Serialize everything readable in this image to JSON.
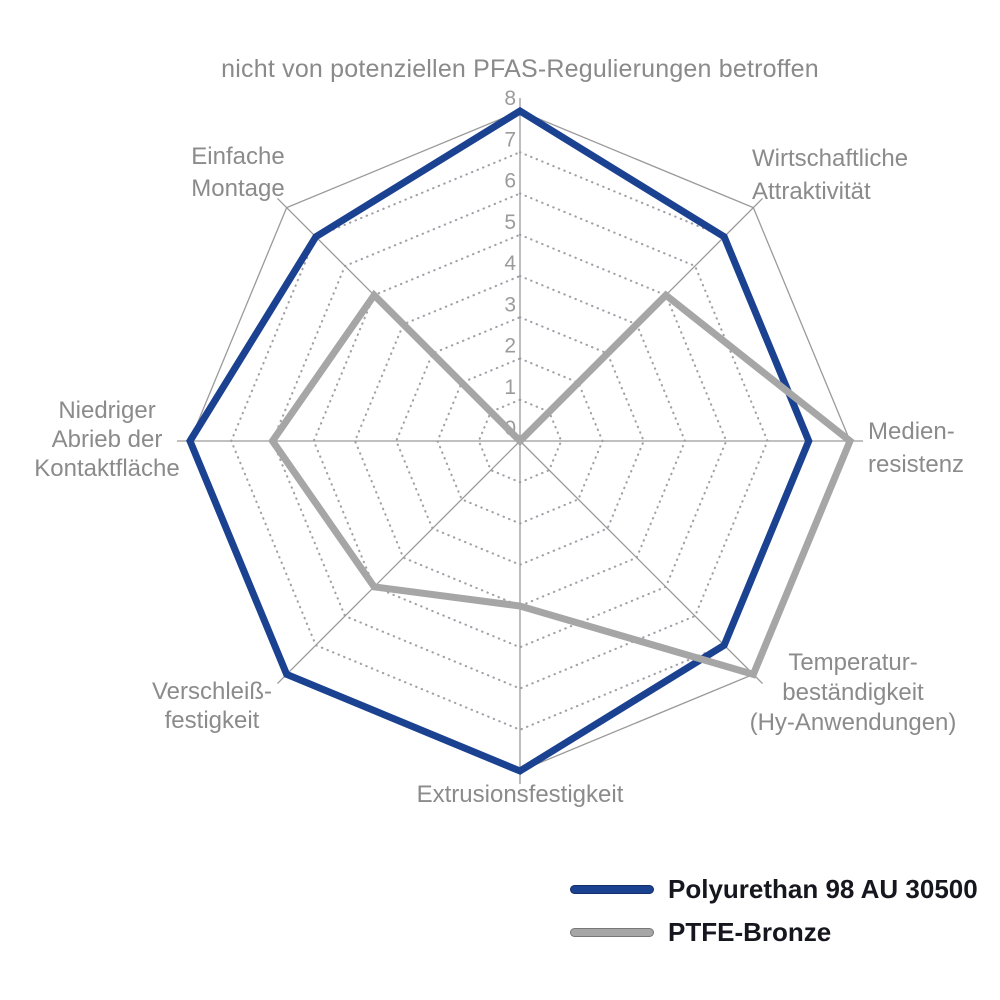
{
  "chart_data": {
    "type": "radar",
    "title": "nicht von potenziellen PFAS-Regulierungen betroffen",
    "scale": {
      "min": 0,
      "max": 8,
      "ticks": [
        "0",
        "1",
        "2",
        "3",
        "4",
        "5",
        "6",
        "7",
        "8"
      ]
    },
    "grid": {
      "rings": "dotted octagons at each integer",
      "outer_ring": "solid",
      "spokes": 8
    },
    "legend_position": "bottom-right",
    "axes": [
      {
        "direction": "top",
        "label": "",
        "lines": []
      },
      {
        "direction": "top-right",
        "label": "Wirtschaftliche Attraktivität",
        "lines": [
          "Wirtschaftliche",
          "Attraktivität"
        ]
      },
      {
        "direction": "right",
        "label": "Medienresistenz",
        "lines": [
          "Medien-",
          "resistenz"
        ]
      },
      {
        "direction": "bottom-right",
        "label": "Temperaturbeständigkeit (Hy-Anwendungen)",
        "lines": [
          "Temperatur-",
          "beständigkeit",
          "(Hy-Anwendungen)"
        ]
      },
      {
        "direction": "bottom",
        "label": "Extrusionsfestigkeit",
        "lines": [
          "Extrusionsfestigkeit"
        ]
      },
      {
        "direction": "bottom-left",
        "label": "Verschleißfestigkeit",
        "lines": [
          "Verschleiß-",
          "festigkeit"
        ]
      },
      {
        "direction": "left",
        "label": "Niedriger Abrieb der Kontaktfläche",
        "lines": [
          "Niedriger",
          "Abrieb der",
          "Kontaktfläche"
        ]
      },
      {
        "direction": "top-left",
        "label": "Einfache Montage",
        "lines": [
          "Einfache",
          "Montage"
        ]
      }
    ],
    "series": [
      {
        "name": "Polyurethan 98 AU 30500",
        "color": "#1b4191",
        "values": [
          8,
          7,
          7,
          7,
          8,
          8,
          8,
          7
        ]
      },
      {
        "name": "PTFE-Bronze",
        "color": "#a6a6a6",
        "values": [
          0,
          5,
          8,
          8,
          4,
          5,
          6,
          5
        ]
      }
    ],
    "colors": {
      "axis_line": "#9a9a9a",
      "grid_dots": "#a3a0a8",
      "axis_label_text": "#8b8b8b",
      "tick_text": "#9b9b9b",
      "title_text": "#8a8a8a",
      "legend_text": "#16161e"
    }
  }
}
